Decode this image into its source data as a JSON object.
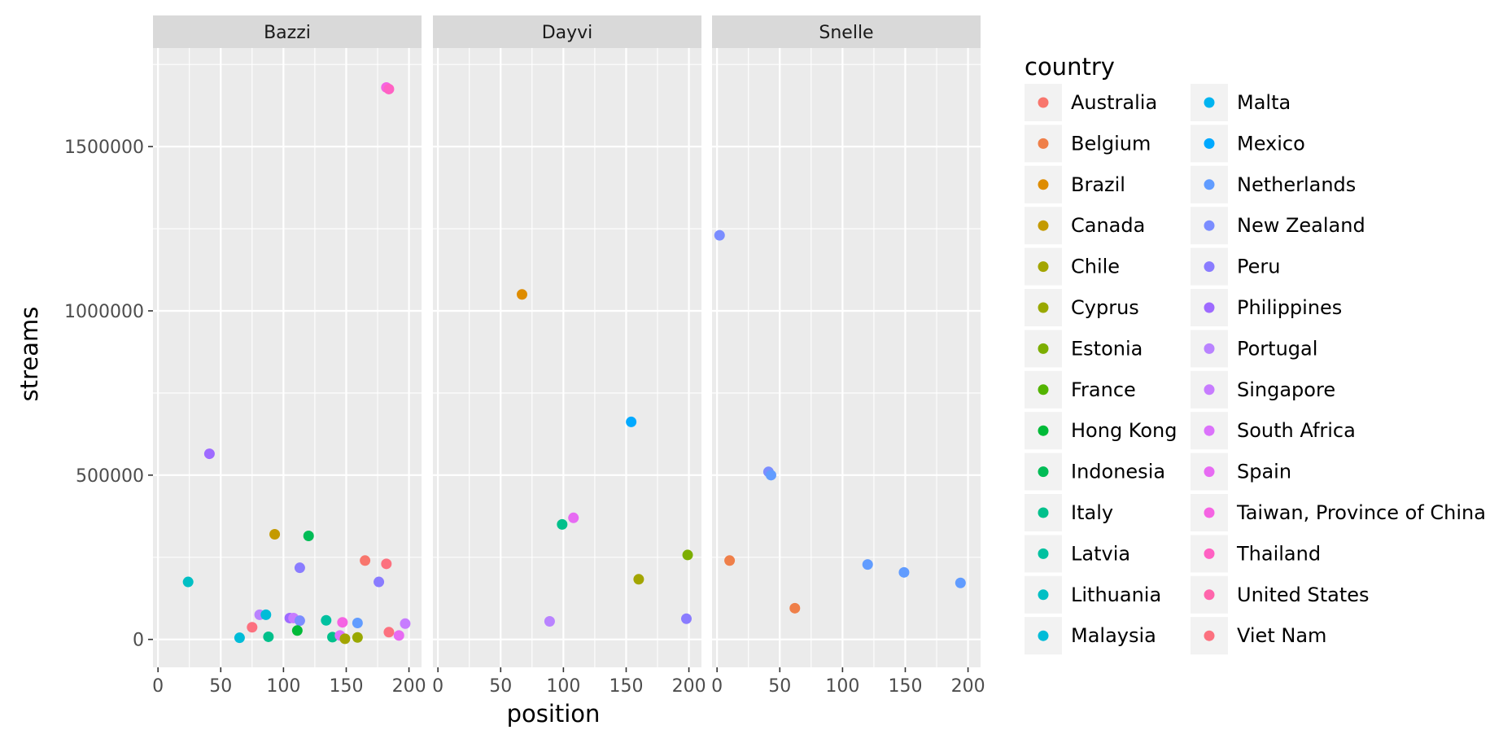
{
  "chart_data": {
    "type": "scatter",
    "facet_variable": "artist",
    "facets": [
      "Bazzi",
      "Dayvi",
      "Snelle"
    ],
    "xlabel": "position",
    "ylabel": "streams",
    "xlim": [
      -4,
      210
    ],
    "ylim": [
      -85000,
      1800000
    ],
    "x_ticks": [
      0,
      50,
      100,
      150,
      200
    ],
    "y_ticks": [
      0,
      500000,
      1000000,
      1500000
    ],
    "y_tick_labels": [
      "0",
      "500000",
      "1000000",
      "1500000"
    ],
    "grid": true,
    "legend": {
      "title": "country",
      "placement": "right",
      "entries": [
        {
          "name": "Australia",
          "color": "#f8766d"
        },
        {
          "name": "Belgium",
          "color": "#ef7f49"
        },
        {
          "name": "Brazil",
          "color": "#de8c00"
        },
        {
          "name": "Canada",
          "color": "#c49a00"
        },
        {
          "name": "Chile",
          "color": "#a3a500"
        },
        {
          "name": "Cyprus",
          "color": "#99a800"
        },
        {
          "name": "Estonia",
          "color": "#7cae00"
        },
        {
          "name": "France",
          "color": "#53b400"
        },
        {
          "name": "Hong Kong",
          "color": "#00ba38"
        },
        {
          "name": "Indonesia",
          "color": "#00bc56"
        },
        {
          "name": "Italy",
          "color": "#00c08b"
        },
        {
          "name": "Latvia",
          "color": "#00c1a0"
        },
        {
          "name": "Lithuania",
          "color": "#00bfc4"
        },
        {
          "name": "Malaysia",
          "color": "#00bcd8"
        },
        {
          "name": "Malta",
          "color": "#00b4f0"
        },
        {
          "name": "Mexico",
          "color": "#00a9ff"
        },
        {
          "name": "Netherlands",
          "color": "#619cff"
        },
        {
          "name": "New Zealand",
          "color": "#7b8dff"
        },
        {
          "name": "Peru",
          "color": "#8a7cff"
        },
        {
          "name": "Philippines",
          "color": "#9e6aff"
        },
        {
          "name": "Portugal",
          "color": "#b983ff"
        },
        {
          "name": "Singapore",
          "color": "#c77cff"
        },
        {
          "name": "South Africa",
          "color": "#db72fb"
        },
        {
          "name": "Spain",
          "color": "#e76bf3"
        },
        {
          "name": "Taiwan, Province of China",
          "color": "#f564e3"
        },
        {
          "name": "Thailand",
          "color": "#ff61c3"
        },
        {
          "name": "United States",
          "color": "#ff65ac"
        },
        {
          "name": "Viet Nam",
          "color": "#fc717f"
        }
      ]
    },
    "points": [
      {
        "facet": "Bazzi",
        "country": "Taiwan, Province of China",
        "x": 182,
        "y": 1680000
      },
      {
        "facet": "Bazzi",
        "country": "Thailand",
        "x": 184,
        "y": 1675000
      },
      {
        "facet": "Bazzi",
        "country": "Philippines",
        "x": 41,
        "y": 565000
      },
      {
        "facet": "Bazzi",
        "country": "Canada",
        "x": 93,
        "y": 320000
      },
      {
        "facet": "Bazzi",
        "country": "Indonesia",
        "x": 120,
        "y": 315000
      },
      {
        "facet": "Bazzi",
        "country": "Australia",
        "x": 165,
        "y": 240000
      },
      {
        "facet": "Bazzi",
        "country": "Viet Nam",
        "x": 182,
        "y": 230000
      },
      {
        "facet": "Bazzi",
        "country": "Peru",
        "x": 113,
        "y": 218000
      },
      {
        "facet": "Bazzi",
        "country": "Lithuania",
        "x": 24,
        "y": 175000
      },
      {
        "facet": "Bazzi",
        "country": "Peru",
        "x": 176,
        "y": 175000
      },
      {
        "facet": "Bazzi",
        "country": "Portugal",
        "x": 81,
        "y": 75000
      },
      {
        "facet": "Bazzi",
        "country": "Malaysia",
        "x": 86,
        "y": 75000
      },
      {
        "facet": "Bazzi",
        "country": "Viet Nam",
        "x": 75,
        "y": 37000
      },
      {
        "facet": "Bazzi",
        "country": "Philippines",
        "x": 105,
        "y": 65000
      },
      {
        "facet": "Bazzi",
        "country": "Singapore",
        "x": 108,
        "y": 65000
      },
      {
        "facet": "Bazzi",
        "country": "New Zealand",
        "x": 113,
        "y": 57000
      },
      {
        "facet": "Bazzi",
        "country": "Latvia",
        "x": 134,
        "y": 58000
      },
      {
        "facet": "Bazzi",
        "country": "Netherlands",
        "x": 159,
        "y": 50000
      },
      {
        "facet": "Bazzi",
        "country": "Taiwan, Province of China",
        "x": 147,
        "y": 52000
      },
      {
        "facet": "Bazzi",
        "country": "Singapore",
        "x": 197,
        "y": 48000
      },
      {
        "facet": "Bazzi",
        "country": "Hong Kong",
        "x": 111,
        "y": 27000
      },
      {
        "facet": "Bazzi",
        "country": "Viet Nam",
        "x": 184,
        "y": 22000
      },
      {
        "facet": "Bazzi",
        "country": "Malaysia",
        "x": 65,
        "y": 5000
      },
      {
        "facet": "Bazzi",
        "country": "Italy",
        "x": 88,
        "y": 8000
      },
      {
        "facet": "Bazzi",
        "country": "Italy",
        "x": 139,
        "y": 7000
      },
      {
        "facet": "Bazzi",
        "country": "South Africa",
        "x": 145,
        "y": 12000
      },
      {
        "facet": "Bazzi",
        "country": "Chile",
        "x": 149,
        "y": 2000
      },
      {
        "facet": "Bazzi",
        "country": "Cyprus",
        "x": 159,
        "y": 6000
      },
      {
        "facet": "Bazzi",
        "country": "Spain",
        "x": 192,
        "y": 12000
      },
      {
        "facet": "Dayvi",
        "country": "Brazil",
        "x": 67,
        "y": 1050000
      },
      {
        "facet": "Dayvi",
        "country": "Mexico",
        "x": 154,
        "y": 662000
      },
      {
        "facet": "Dayvi",
        "country": "Spain",
        "x": 108,
        "y": 370000
      },
      {
        "facet": "Dayvi",
        "country": "Italy",
        "x": 99,
        "y": 350000
      },
      {
        "facet": "Dayvi",
        "country": "Estonia",
        "x": 199,
        "y": 257000
      },
      {
        "facet": "Dayvi",
        "country": "Chile",
        "x": 160,
        "y": 183000
      },
      {
        "facet": "Dayvi",
        "country": "Portugal",
        "x": 89,
        "y": 55000
      },
      {
        "facet": "Dayvi",
        "country": "Peru",
        "x": 198,
        "y": 63000
      },
      {
        "facet": "Snelle",
        "country": "New Zealand",
        "x": 2,
        "y": 1230000
      },
      {
        "facet": "Snelle",
        "country": "New Zealand",
        "x": 41,
        "y": 510000
      },
      {
        "facet": "Snelle",
        "country": "Netherlands",
        "x": 43,
        "y": 500000
      },
      {
        "facet": "Snelle",
        "country": "Belgium",
        "x": 10,
        "y": 240000
      },
      {
        "facet": "Snelle",
        "country": "Belgium",
        "x": 62,
        "y": 95000
      },
      {
        "facet": "Snelle",
        "country": "Netherlands",
        "x": 120,
        "y": 228000
      },
      {
        "facet": "Snelle",
        "country": "Netherlands",
        "x": 149,
        "y": 204000
      },
      {
        "facet": "Snelle",
        "country": "Netherlands",
        "x": 194,
        "y": 172000
      }
    ]
  }
}
